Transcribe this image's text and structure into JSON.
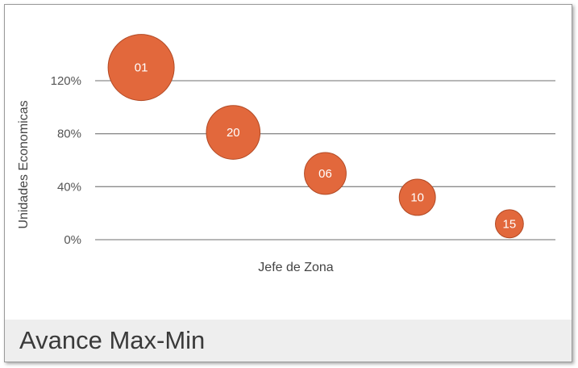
{
  "card": {
    "title": "Avance Max-Min"
  },
  "colors": {
    "bubble": "#e2683c",
    "bubble_border": "#b24a25",
    "gridline": "#8c8c8c",
    "footer_bg": "#eeeeee"
  },
  "chart_data": {
    "type": "scatter",
    "variant": "bubble",
    "title": "",
    "xlabel": "Jefe de Zona",
    "ylabel": "Unidades Economicas",
    "yticks": [
      "0%",
      "40%",
      "80%",
      "120%"
    ],
    "ytick_values": [
      0,
      40,
      80,
      120
    ],
    "ylim": [
      0,
      120
    ],
    "xlim": [
      0,
      5
    ],
    "grid": true,
    "legend": "none",
    "points": [
      {
        "label": "01",
        "x": 0.5,
        "y": 130,
        "size": 100
      },
      {
        "label": "20",
        "x": 1.5,
        "y": 81,
        "size": 66
      },
      {
        "label": "06",
        "x": 2.5,
        "y": 50,
        "size": 40
      },
      {
        "label": "10",
        "x": 3.5,
        "y": 32,
        "size": 30
      },
      {
        "label": "15",
        "x": 4.5,
        "y": 12,
        "size": 18
      }
    ]
  }
}
